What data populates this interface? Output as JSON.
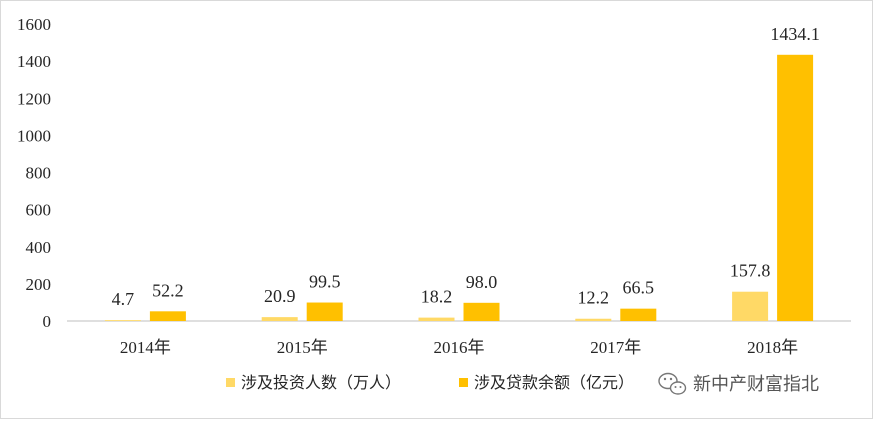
{
  "chart_data": {
    "type": "bar",
    "categories": [
      "2014年",
      "2015年",
      "2016年",
      "2017年",
      "2018年"
    ],
    "series": [
      {
        "name": "涉及投资人数（万人）",
        "values": [
          4.7,
          20.9,
          18.2,
          12.2,
          157.8
        ],
        "labels": [
          "4.7",
          "20.9",
          "18.2",
          "12.2",
          "157.8"
        ],
        "color": "#ffd966"
      },
      {
        "name": "涉及贷款余额（亿元）",
        "values": [
          52.2,
          99.5,
          98.0,
          66.5,
          1434.1
        ],
        "labels": [
          "52.2",
          "99.5",
          "98.0",
          "66.5",
          "1434.1"
        ],
        "color": "#ffc000"
      }
    ],
    "yticks": [
      "0",
      "200",
      "400",
      "600",
      "800",
      "1000",
      "1200",
      "1400",
      "1600"
    ],
    "ylim": [
      0,
      1600
    ],
    "grid": false,
    "legend_position": "bottom"
  },
  "watermark": {
    "text": "新中产财富指北",
    "icon": "wechat-icon"
  }
}
